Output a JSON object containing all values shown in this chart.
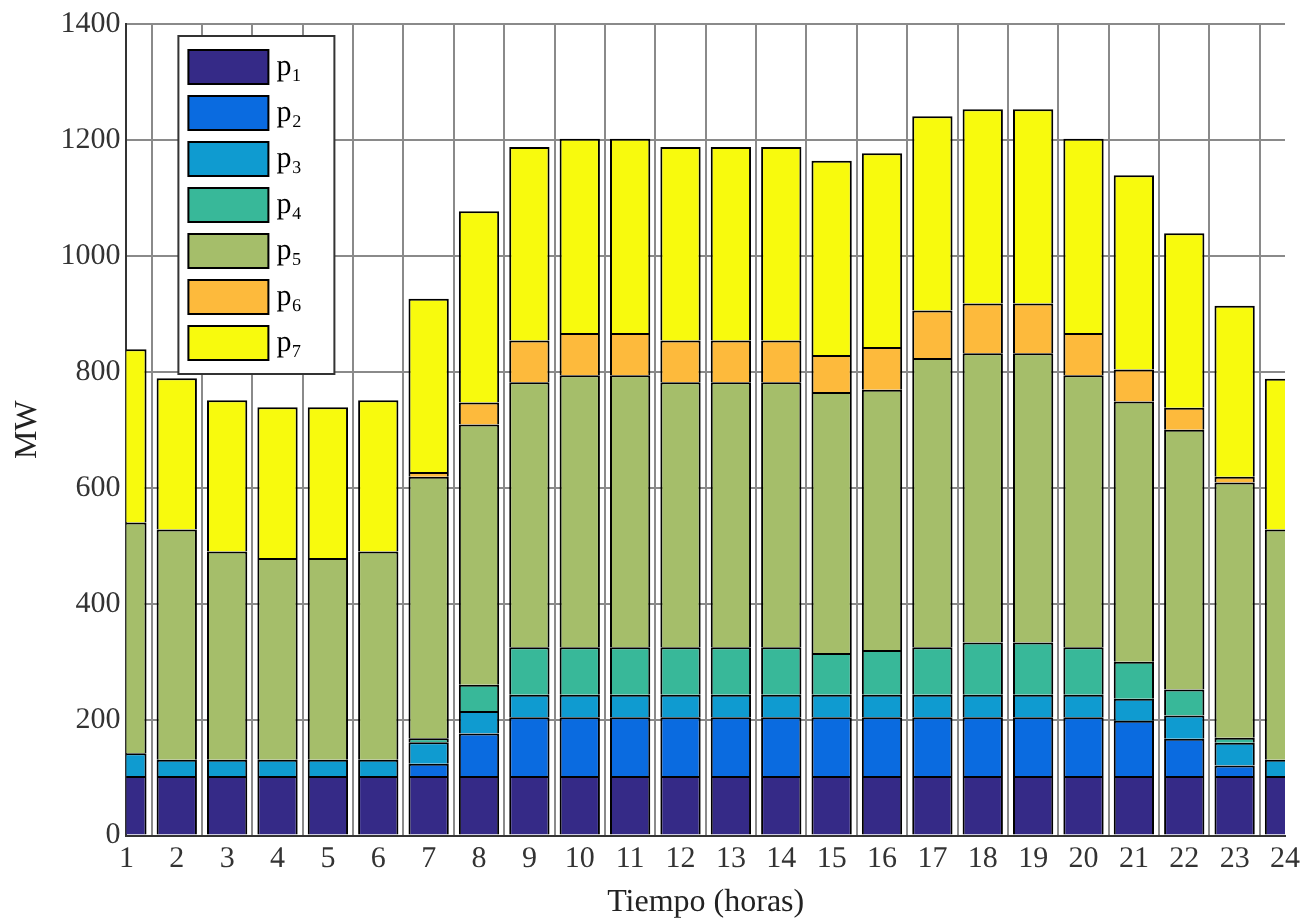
{
  "chart_data": {
    "type": "bar",
    "stacked": true,
    "xlabel": "Tiempo (horas)",
    "ylabel": "MW",
    "x": [
      1,
      2,
      3,
      4,
      5,
      6,
      7,
      8,
      9,
      10,
      11,
      12,
      13,
      14,
      15,
      16,
      17,
      18,
      19,
      20,
      21,
      22,
      23,
      24
    ],
    "xlim": [
      1,
      24
    ],
    "xticks": [
      1,
      2,
      3,
      4,
      5,
      6,
      7,
      8,
      9,
      10,
      11,
      12,
      13,
      14,
      15,
      16,
      17,
      18,
      19,
      20,
      21,
      22,
      23,
      24
    ],
    "ylim": [
      0,
      1400
    ],
    "yticks": [
      0,
      200,
      400,
      600,
      800,
      1000,
      1200,
      1400
    ],
    "grid": true,
    "legend": "top left",
    "series": [
      {
        "name": "p₁",
        "color": "#352a87",
        "values": [
          103,
          103,
          103,
          103,
          103,
          103,
          103,
          103,
          103,
          103,
          103,
          103,
          103,
          103,
          103,
          103,
          103,
          103,
          103,
          103,
          103,
          103,
          103,
          103
        ]
      },
      {
        "name": "p₂",
        "color": "#0a6be0",
        "values": [
          0,
          0,
          0,
          0,
          0,
          0,
          21,
          73,
          101,
          101,
          101,
          101,
          101,
          101,
          101,
          101,
          101,
          101,
          101,
          101,
          95,
          64,
          18,
          0
        ]
      },
      {
        "name": "p₃",
        "color": "#0f9bd0",
        "values": [
          39,
          28,
          28,
          28,
          28,
          28,
          37,
          39,
          39,
          39,
          39,
          39,
          39,
          39,
          39,
          39,
          39,
          39,
          39,
          39,
          38,
          40,
          39,
          28
        ]
      },
      {
        "name": "p₄",
        "color": "#38b899",
        "values": [
          0,
          0,
          0,
          0,
          0,
          0,
          7,
          45,
          82,
          82,
          82,
          82,
          82,
          82,
          72,
          77,
          82,
          90,
          90,
          82,
          64,
          45,
          9,
          0
        ]
      },
      {
        "name": "p₅",
        "color": "#a5be6a",
        "values": [
          398,
          397,
          359,
          348,
          348,
          359,
          451,
          449,
          457,
          469,
          469,
          457,
          457,
          457,
          450,
          449,
          499,
          499,
          499,
          469,
          449,
          448,
          440,
          397
        ]
      },
      {
        "name": "p₆",
        "color": "#fdba3c",
        "values": [
          0,
          0,
          0,
          0,
          0,
          0,
          8,
          38,
          72,
          73,
          73,
          72,
          72,
          72,
          64,
          74,
          82,
          86,
          86,
          73,
          55,
          38,
          10,
          0
        ]
      },
      {
        "name": "p₇",
        "color": "#f8fa0d",
        "values": [
          299,
          261,
          261,
          260,
          260,
          261,
          299,
          330,
          334,
          335,
          335,
          334,
          334,
          334,
          335,
          334,
          335,
          335,
          335,
          335,
          335,
          301,
          295,
          260
        ]
      }
    ]
  }
}
